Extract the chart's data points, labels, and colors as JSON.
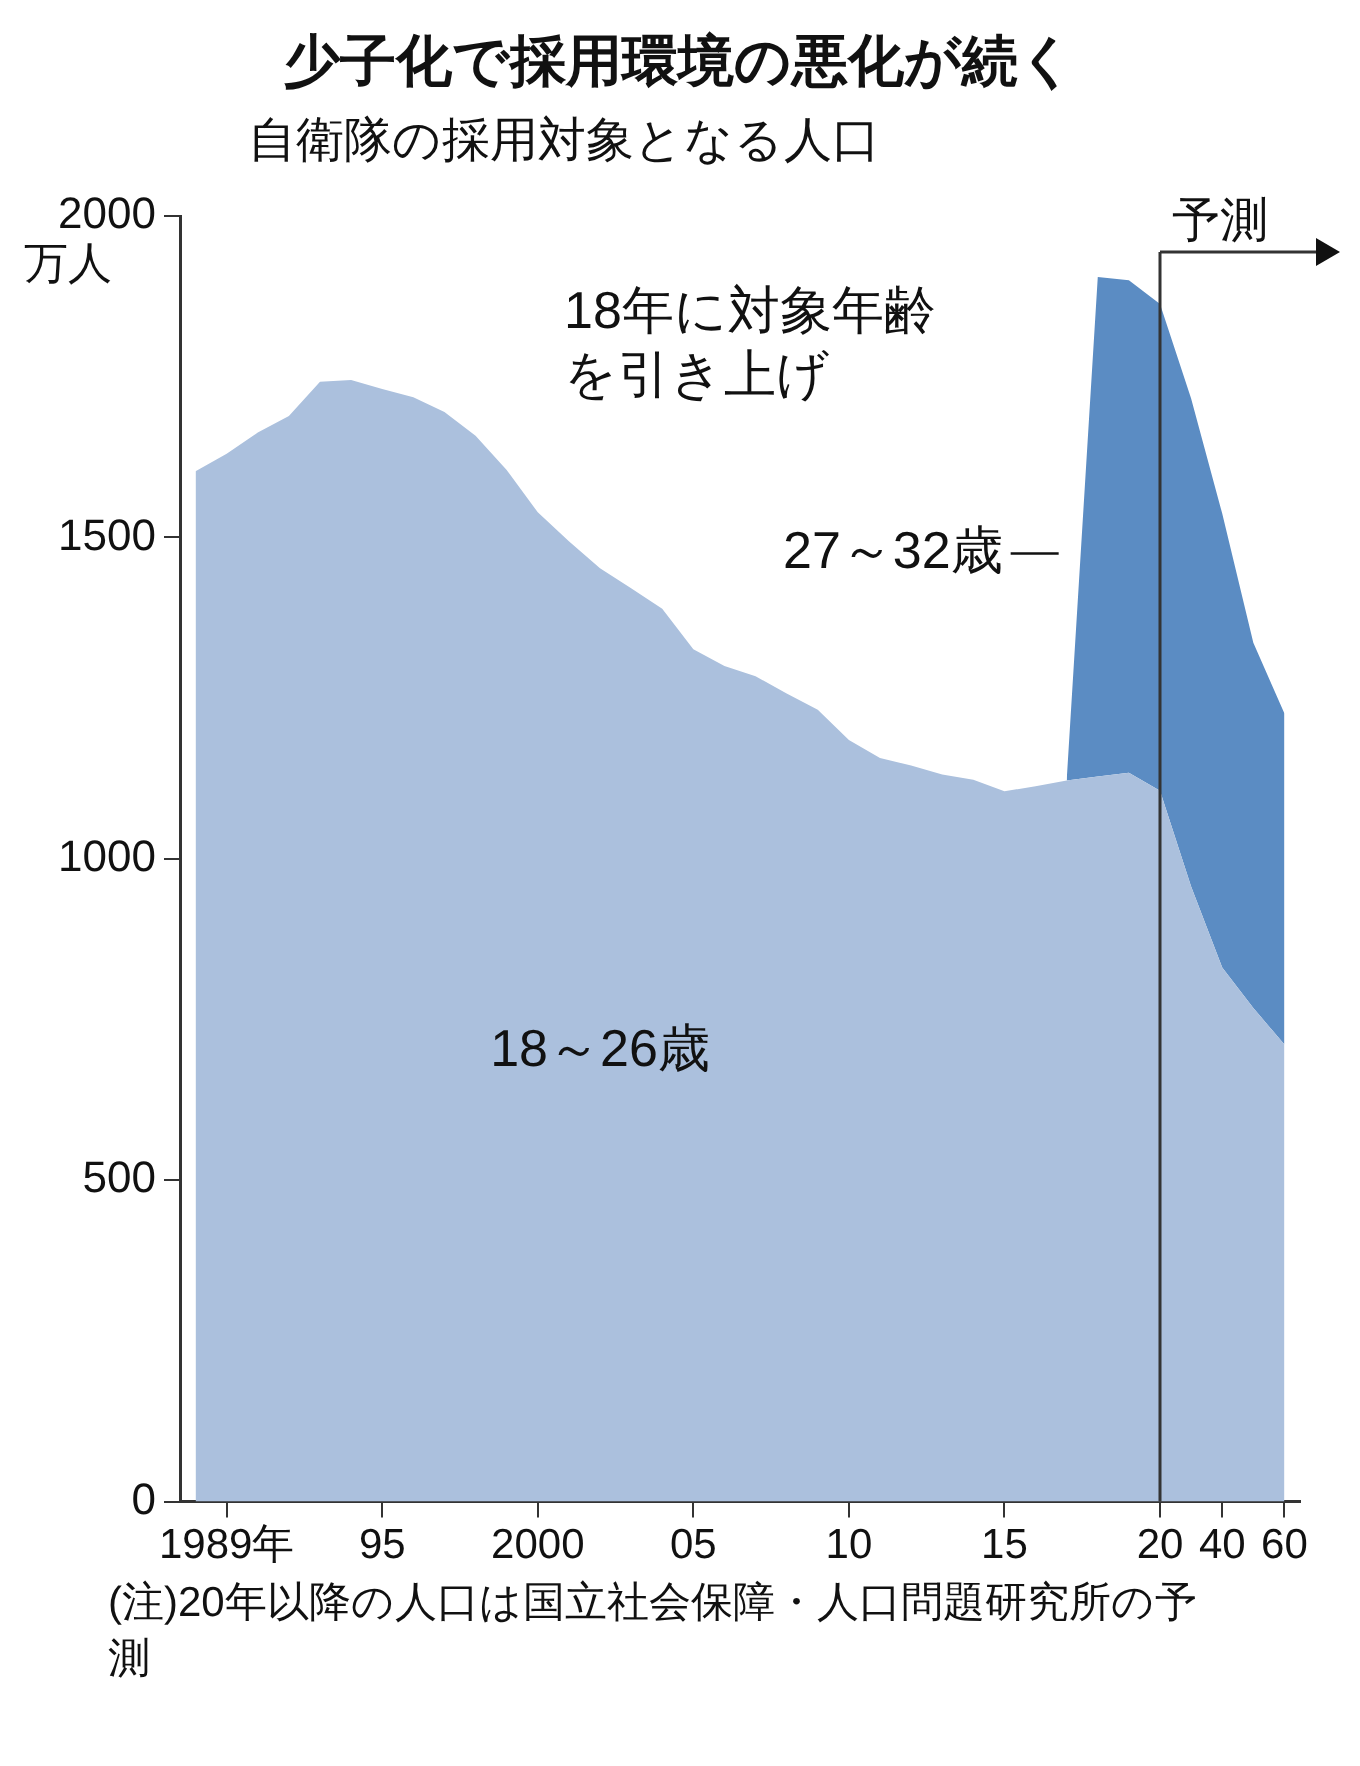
{
  "chart_data": {
    "type": "area",
    "title": "少子化で採用環境の悪化が続く",
    "subtitle": "自衛隊の採用対象となる人口",
    "ylabel": "万人",
    "categories": [
      null,
      "1989年",
      null,
      null,
      null,
      null,
      "95",
      null,
      null,
      null,
      null,
      "2000",
      null,
      null,
      null,
      null,
      "05",
      null,
      null,
      null,
      null,
      "10",
      null,
      null,
      null,
      null,
      "15",
      null,
      null,
      null,
      null,
      "20",
      null,
      "40",
      null,
      "60"
    ],
    "stacked": true,
    "series": [
      {
        "name": "18～26歳",
        "color": "#abc0dd",
        "values": [
          1603,
          1630,
          1663,
          1689,
          1742,
          1745,
          1731,
          1718,
          1695,
          1658,
          1605,
          1539,
          1494,
          1452,
          1421,
          1389,
          1326,
          1300,
          1284,
          1257,
          1232,
          1185,
          1157,
          1145,
          1131,
          1123,
          1105,
          1113,
          1122,
          1128,
          1134,
          1106,
          957,
          831,
          768,
          711
        ]
      },
      {
        "name": "27～32歳",
        "color": "#5b8cc3",
        "values": [
          null,
          null,
          null,
          null,
          null,
          null,
          null,
          null,
          null,
          null,
          null,
          null,
          null,
          null,
          null,
          null,
          null,
          null,
          null,
          null,
          null,
          null,
          null,
          null,
          null,
          null,
          null,
          null,
          0,
          777,
          766,
          757,
          759,
          706,
          568,
          515
        ]
      }
    ],
    "ylim": [
      0,
      2000
    ],
    "yticks": [
      0,
      500,
      1000,
      1500,
      2000
    ],
    "grid": false,
    "legend": false,
    "ref_lines": [
      {
        "axis": "x",
        "value": "20",
        "label": "予測",
        "color": "#333333"
      }
    ],
    "annotations": [
      "18年に対象年齢を引き上げ",
      "(注)20年以降の人口は国立社会保障・人口問題研究所の予測"
    ]
  }
}
